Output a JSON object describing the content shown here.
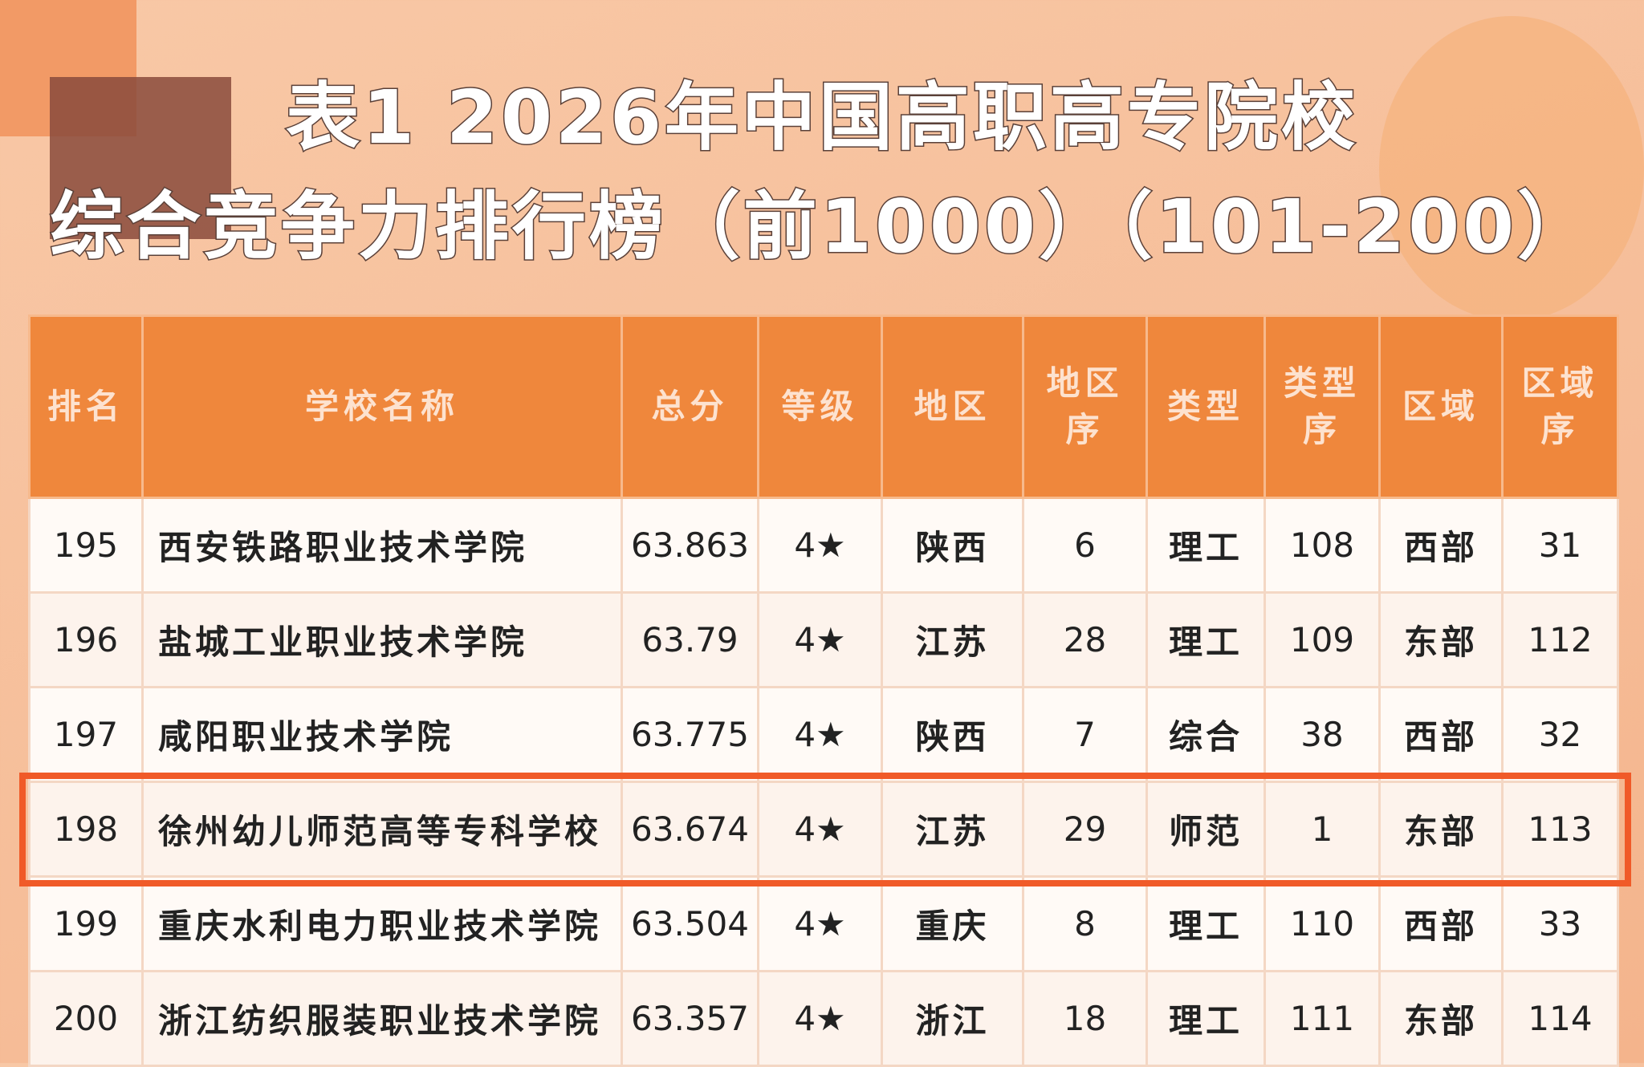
{
  "header": {
    "title_line1": "表1  2026年中国高职高专院校",
    "title_line2": "综合竞争力排行榜（前1000）（101-200）"
  },
  "table": {
    "columns": [
      [
        "排名"
      ],
      [
        "学校名称"
      ],
      [
        "总分"
      ],
      [
        "等级"
      ],
      [
        "地区"
      ],
      [
        "地区",
        "序"
      ],
      [
        "类型"
      ],
      [
        "类型",
        "序"
      ],
      [
        "区域"
      ],
      [
        "区域",
        "序"
      ]
    ],
    "rows": [
      [
        "195",
        "西安铁路职业技术学院",
        "63.863",
        "4★",
        "陕西",
        "6",
        "理工",
        "108",
        "西部",
        "31"
      ],
      [
        "196",
        "盐城工业职业技术学院",
        "63.79",
        "4★",
        "江苏",
        "28",
        "理工",
        "109",
        "东部",
        "112"
      ],
      [
        "197",
        "咸阳职业技术学院",
        "63.775",
        "4★",
        "陕西",
        "7",
        "综合",
        "38",
        "西部",
        "32"
      ],
      [
        "198",
        "徐州幼儿师范高等专科学校",
        "63.674",
        "4★",
        "江苏",
        "29",
        "师范",
        "1",
        "东部",
        "113"
      ],
      [
        "199",
        "重庆水利电力职业技术学院",
        "63.504",
        "4★",
        "重庆",
        "8",
        "理工",
        "110",
        "西部",
        "33"
      ],
      [
        "200",
        "浙江纺织服装职业技术学院",
        "63.357",
        "4★",
        "浙江",
        "18",
        "理工",
        "111",
        "东部",
        "114"
      ]
    ],
    "highlight_row": 3
  }
}
